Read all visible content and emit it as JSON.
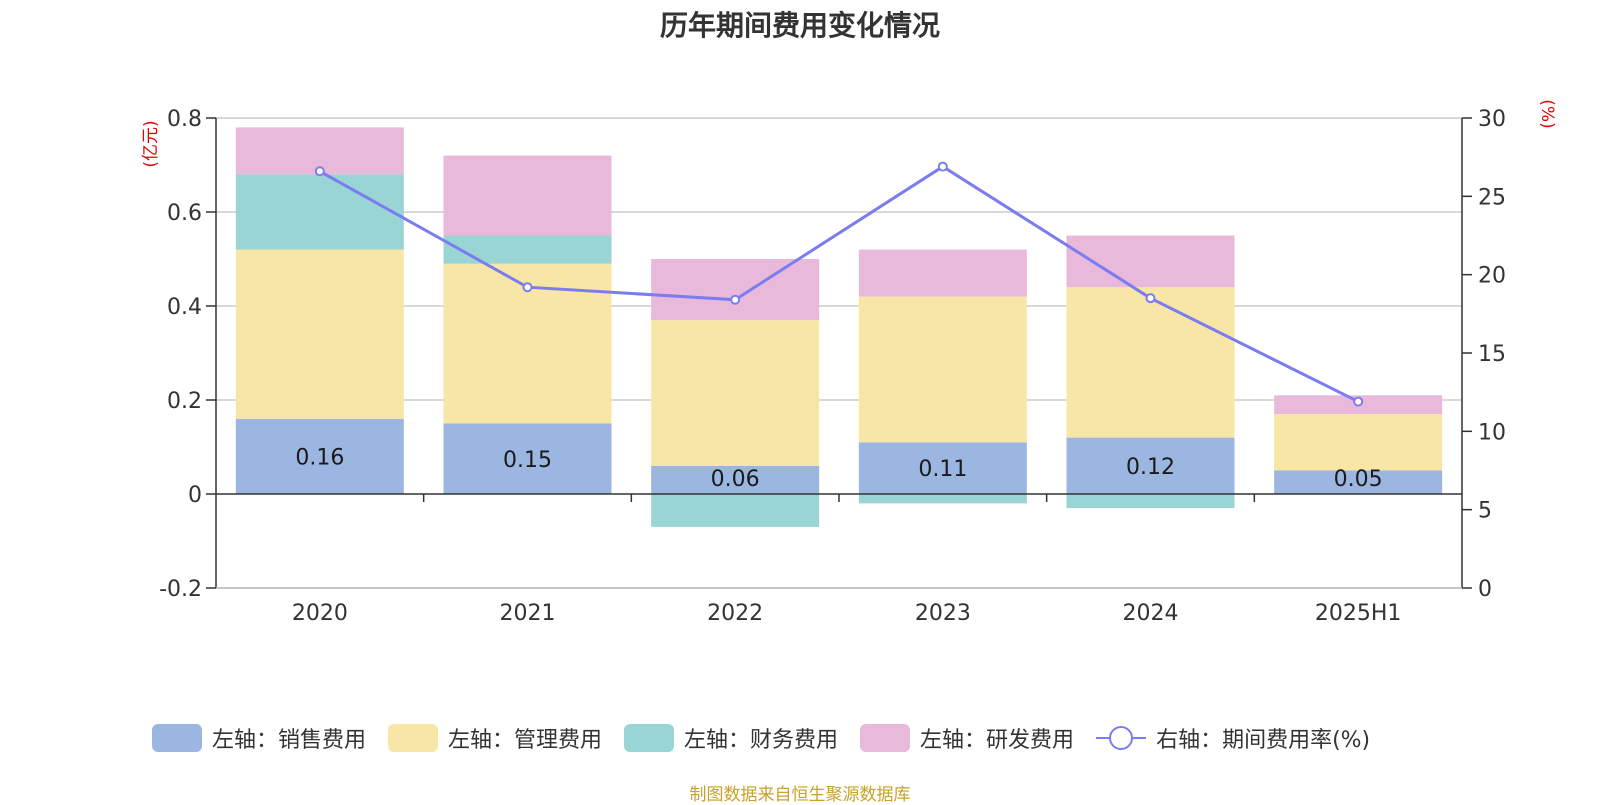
{
  "chart_data": {
    "type": "bar",
    "title": "历年期间费用变化情况",
    "categories": [
      "2020",
      "2021",
      "2022",
      "2023",
      "2024",
      "2025H1"
    ],
    "stacked": true,
    "series": [
      {
        "name": "左轴：销售费用",
        "axis": "left",
        "values": [
          0.16,
          0.15,
          0.06,
          0.11,
          0.12,
          0.05
        ],
        "color": "#9cb6e2",
        "labels": [
          "0.16",
          "0.15",
          "0.06",
          "0.11",
          "0.12",
          "0.05"
        ]
      },
      {
        "name": "左轴：管理费用",
        "axis": "left",
        "values": [
          0.36,
          0.34,
          0.31,
          0.31,
          0.32,
          0.12
        ],
        "color": "#f8e6a7"
      },
      {
        "name": "左轴：财务费用",
        "axis": "left",
        "values": [
          0.16,
          0.06,
          -0.07,
          -0.02,
          -0.03,
          0.0
        ],
        "color": "#99d5d5"
      },
      {
        "name": "左轴：研发费用",
        "axis": "left",
        "values": [
          0.1,
          0.17,
          0.13,
          0.1,
          0.11,
          0.04
        ],
        "color": "#e8b9da"
      }
    ],
    "line_series": {
      "name": "右轴：期间费用率(%)",
      "axis": "right",
      "type": "line",
      "values": [
        26.6,
        19.2,
        18.4,
        26.9,
        18.5,
        11.9
      ],
      "color": "#7b7cf0"
    },
    "left_axis": {
      "unit": "(亿元)",
      "ylim": [
        -0.2,
        0.8
      ],
      "ticks": [
        "-0.2",
        "0",
        "0.2",
        "0.4",
        "0.6",
        "0.8"
      ],
      "tick_values": [
        -0.2,
        0,
        0.2,
        0.4,
        0.6,
        0.8
      ]
    },
    "right_axis": {
      "unit": "(%)",
      "ylim": [
        0,
        30
      ],
      "ticks": [
        "0",
        "5",
        "10",
        "15",
        "20",
        "25",
        "30"
      ],
      "tick_values": [
        0,
        5,
        10,
        15,
        20,
        25,
        30
      ]
    },
    "grid": true,
    "legend_position": "bottom"
  },
  "source_note": "制图数据来自恒生聚源数据库"
}
